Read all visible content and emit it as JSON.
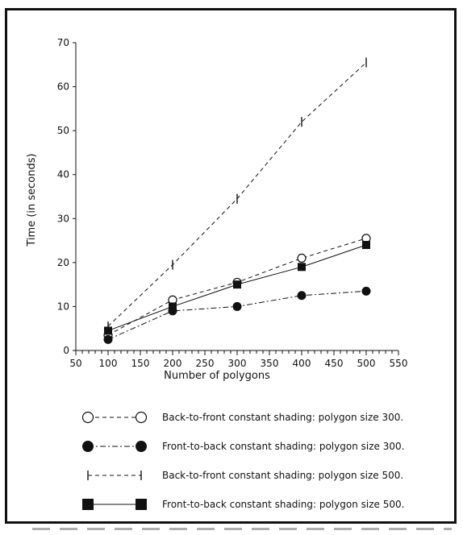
{
  "chart_data": {
    "type": "line",
    "title": "",
    "xlabel": "Number of polygons",
    "ylabel": "Time (in seconds)",
    "xlim": [
      50,
      550
    ],
    "ylim": [
      0,
      70
    ],
    "xticks": [
      50,
      100,
      150,
      200,
      250,
      300,
      350,
      400,
      450,
      500,
      550
    ],
    "yticks": [
      0,
      10,
      20,
      30,
      40,
      50,
      60,
      70
    ],
    "grid": false,
    "legend_position": "bottom",
    "series": [
      {
        "name": "Back-to-front constant shading: polygon size 300.",
        "x": [
          100,
          200,
          300,
          400,
          500
        ],
        "y": [
          3.5,
          11.5,
          15.5,
          21,
          25.5
        ],
        "marker": "open-circle",
        "line": "dashed",
        "color": "#111111"
      },
      {
        "name": "Front-to-back constant shading: polygon size 300.",
        "x": [
          100,
          200,
          300,
          400,
          500
        ],
        "y": [
          2.5,
          9,
          10,
          12.5,
          13.5
        ],
        "marker": "filled-circle",
        "line": "dash-dot",
        "color": "#111111"
      },
      {
        "name": "Back-to-front constant shading: polygon size 500.",
        "x": [
          100,
          200,
          300,
          400,
          500
        ],
        "y": [
          5.5,
          19.5,
          34.5,
          52,
          65.5
        ],
        "marker": "vertical-bar",
        "line": "dashed",
        "color": "#111111"
      },
      {
        "name": "Front-to-back constant shading: polygon size 500.",
        "x": [
          100,
          200,
          300,
          400,
          500
        ],
        "y": [
          4.5,
          10,
          15,
          19,
          24
        ],
        "marker": "filled-square",
        "line": "solid",
        "color": "#111111"
      }
    ]
  }
}
